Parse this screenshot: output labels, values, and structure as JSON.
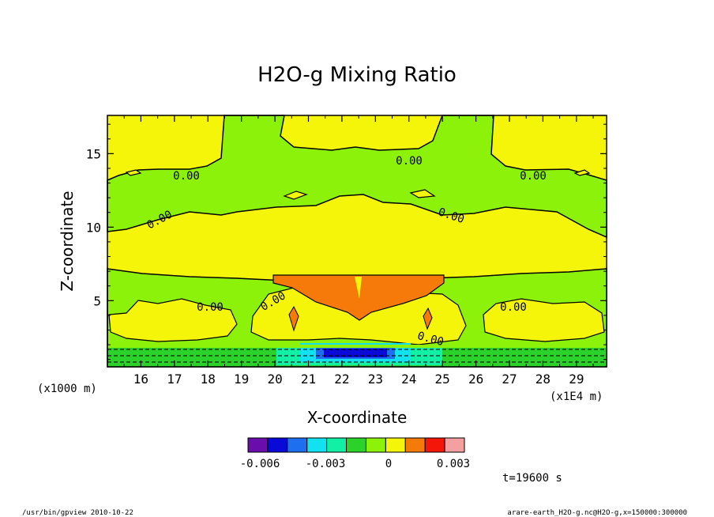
{
  "chart_data": {
    "type": "contour",
    "title": "H2O-g Mixing Ratio",
    "xlabel": "X-coordinate",
    "ylabel": "Z-coordinate",
    "x_unit": "(x1E4 m)",
    "z_unit": "(x1000 m)",
    "x_ticks": [
      "16",
      "17",
      "18",
      "19",
      "20",
      "21",
      "22",
      "23",
      "24",
      "25",
      "26",
      "27",
      "28",
      "29"
    ],
    "y_ticks": [
      "5",
      "10",
      "15"
    ],
    "xlim": [
      15.0,
      29.9
    ],
    "ylim": [
      0.5,
      17.6
    ],
    "contour_labels": [
      "0.00",
      "0.00",
      "0.00",
      "0.00",
      "0.00",
      "0.00",
      "0.00",
      "0.00",
      "0.00"
    ],
    "colorbar": {
      "colors": [
        "#6a0dad",
        "#0a0ad8",
        "#1e6ef0",
        "#12e2f0",
        "#12f0a6",
        "#2ad22a",
        "#8cf20a",
        "#f5f50a",
        "#f57a0a",
        "#f5160a",
        "#f5a0a0"
      ],
      "tick_labels": [
        "-0.006",
        "-0.003",
        "0",
        "0.003"
      ],
      "tick_values": [
        -0.006,
        -0.003,
        0,
        0.003
      ]
    },
    "time": "t=19600 s",
    "footer_left": "/usr/bin/gpview  2010-10-22",
    "footer_right": "arare-earth_H2O-g.nc@H2O-g,x=150000:300000"
  }
}
